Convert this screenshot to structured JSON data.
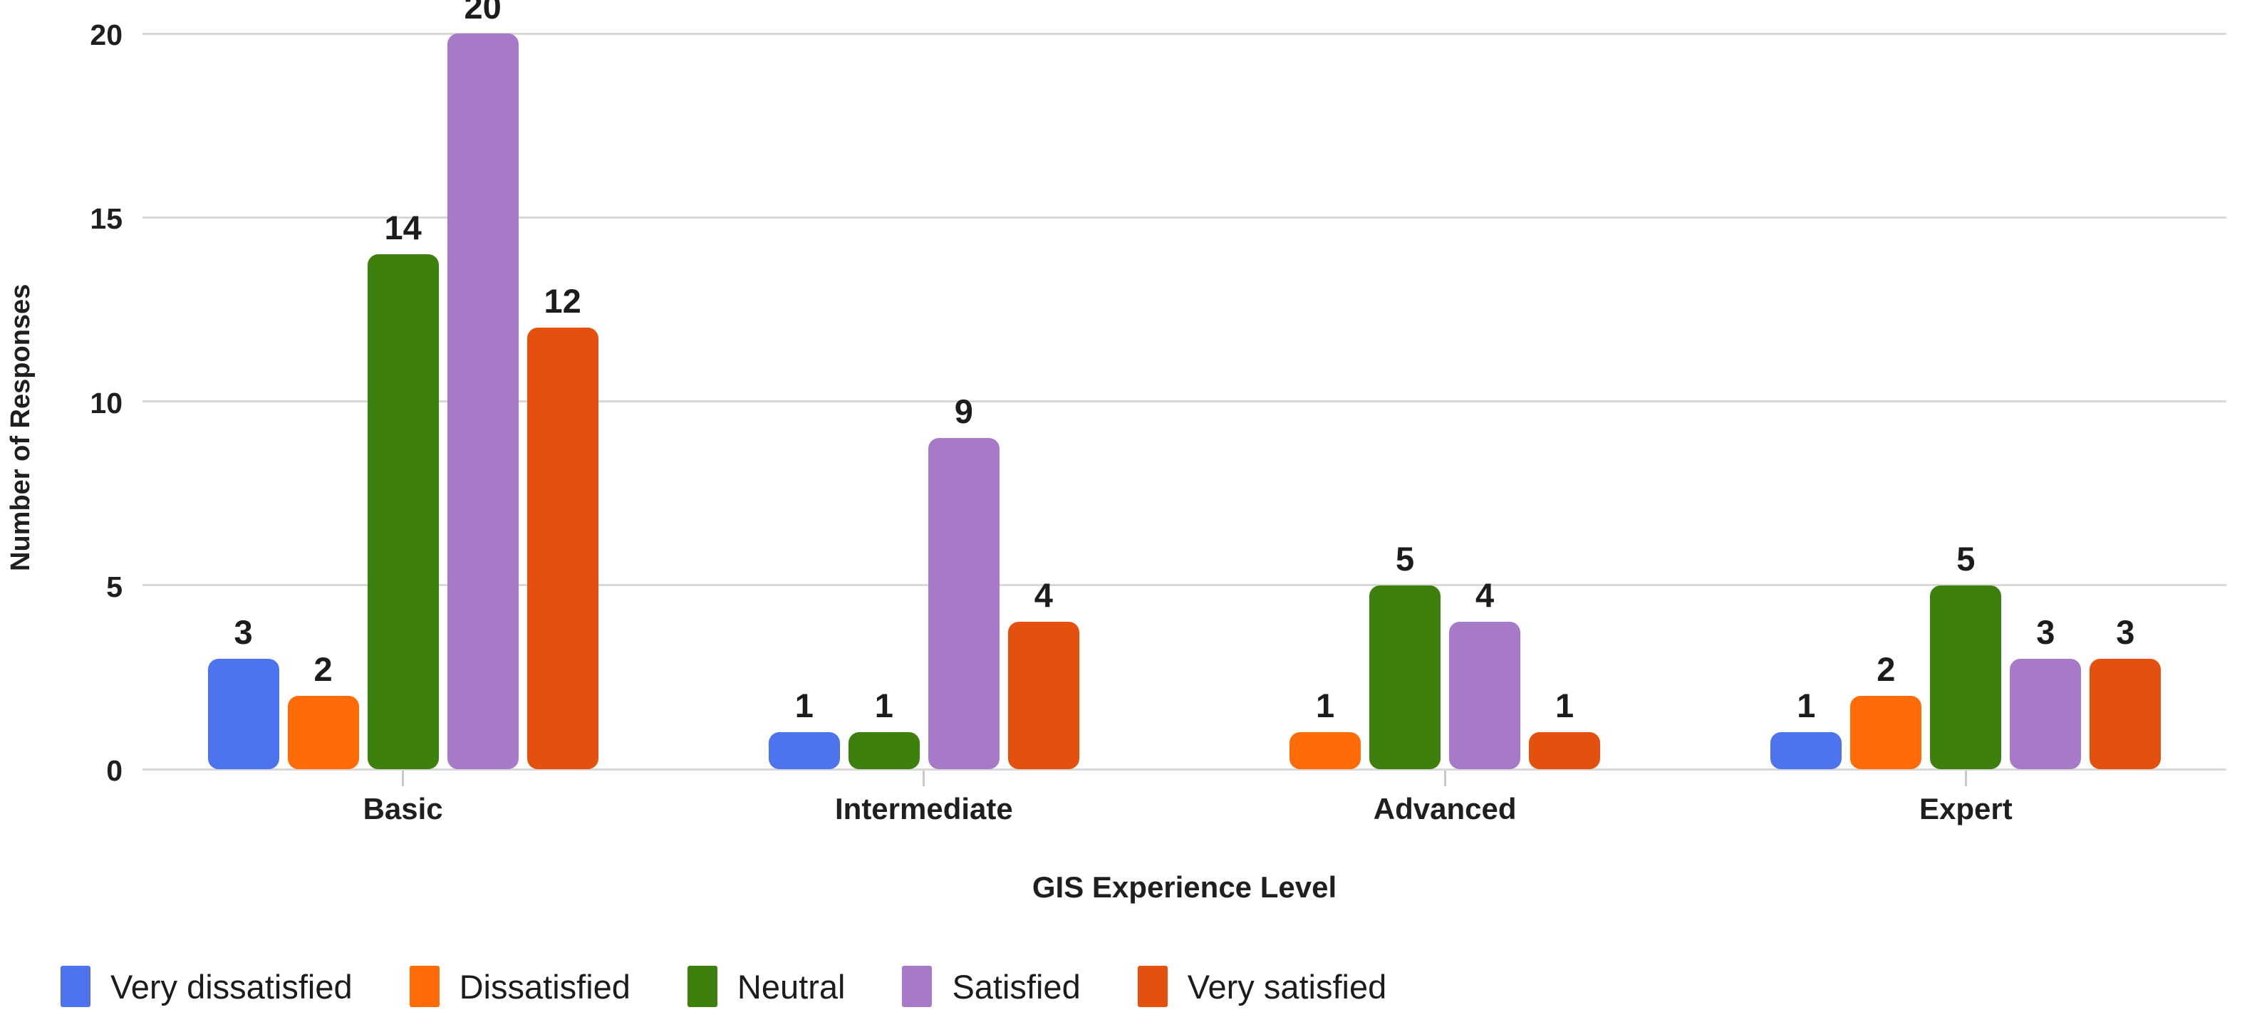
{
  "chart_data": {
    "type": "bar",
    "title": "",
    "categories": [
      "Basic",
      "Intermediate",
      "Advanced",
      "Expert"
    ],
    "series": [
      {
        "name": "Very dissatisfied",
        "color": "#4E73EE",
        "values": [
          3,
          1,
          null,
          1
        ]
      },
      {
        "name": "Dissatisfied",
        "color": "#FF6B06",
        "values": [
          2,
          null,
          1,
          2
        ]
      },
      {
        "name": "Neutral",
        "color": "#3D800E",
        "values": [
          14,
          1,
          5,
          5
        ]
      },
      {
        "name": "Satisfied",
        "color": "#A77AC8",
        "values": [
          20,
          9,
          4,
          3
        ]
      },
      {
        "name": "Very satisfied",
        "color": "#E4500E",
        "values": [
          12,
          4,
          1,
          3
        ]
      }
    ],
    "xlabel": "GIS Experience Level",
    "ylabel": "Number of Responses",
    "ylim": [
      0,
      20
    ],
    "yticks": [
      0,
      5,
      10,
      15,
      20
    ],
    "grid": true,
    "legend_position": "bottom",
    "value_labels": true
  },
  "style_colors": {
    "gridline": "#d8d8d8",
    "tick_mark": "#c9c9c9",
    "text": "#1f1f1f",
    "background": "#ffffff"
  }
}
